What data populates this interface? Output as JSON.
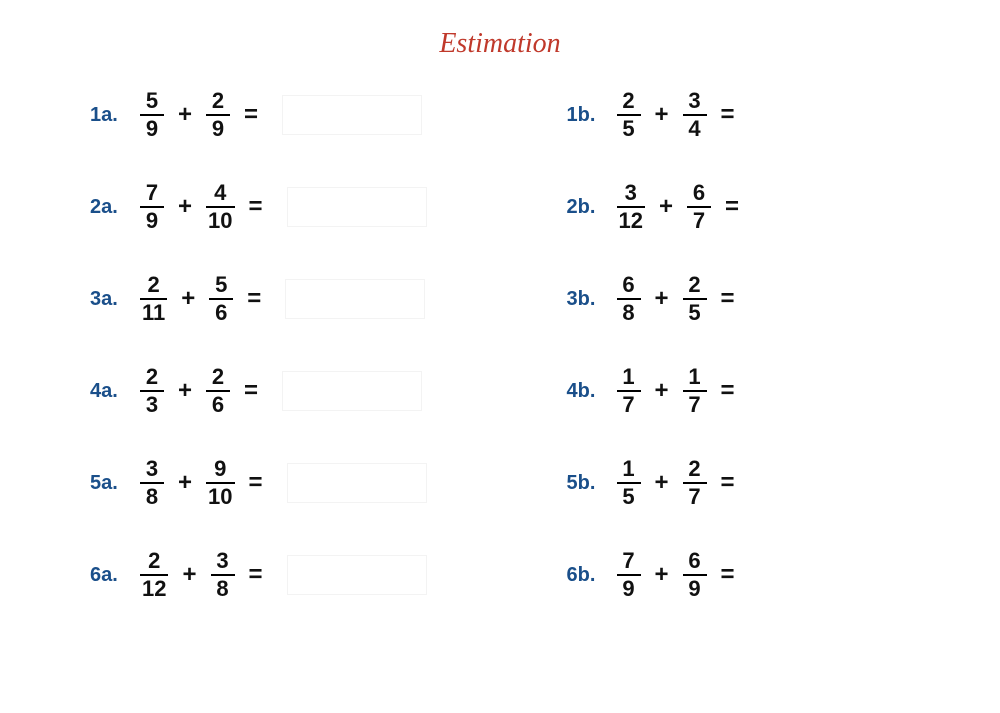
{
  "title": "Estimation",
  "title_color": "#c0392b",
  "label_color": "#1a4f8a",
  "text_color": "#111111",
  "background": "#ffffff",
  "problems": {
    "left": [
      {
        "label": "1a.",
        "n1": "5",
        "d1": "9",
        "n2": "2",
        "d2": "9",
        "op": "+",
        "eq": "="
      },
      {
        "label": "2a.",
        "n1": "7",
        "d1": "9",
        "n2": "4",
        "d2": "10",
        "op": "+",
        "eq": "="
      },
      {
        "label": "3a.",
        "n1": "2",
        "d1": "11",
        "n2": "5",
        "d2": "6",
        "op": "+",
        "eq": "="
      },
      {
        "label": "4a.",
        "n1": "2",
        "d1": "3",
        "n2": "2",
        "d2": "6",
        "op": "+",
        "eq": "="
      },
      {
        "label": "5a.",
        "n1": "3",
        "d1": "8",
        "n2": "9",
        "d2": "10",
        "op": "+",
        "eq": "="
      },
      {
        "label": "6a.",
        "n1": "2",
        "d1": "12",
        "n2": "3",
        "d2": "8",
        "op": "+",
        "eq": "="
      }
    ],
    "right": [
      {
        "label": "1b.",
        "n1": "2",
        "d1": "5",
        "n2": "3",
        "d2": "4",
        "op": "+",
        "eq": "="
      },
      {
        "label": "2b.",
        "n1": "3",
        "d1": "12",
        "n2": "6",
        "d2": "7",
        "op": "+",
        "eq": "="
      },
      {
        "label": "3b.",
        "n1": "6",
        "d1": "8",
        "n2": "2",
        "d2": "5",
        "op": "+",
        "eq": "="
      },
      {
        "label": "4b.",
        "n1": "1",
        "d1": "7",
        "n2": "1",
        "d2": "7",
        "op": "+",
        "eq": "="
      },
      {
        "label": "5b.",
        "n1": "1",
        "d1": "5",
        "n2": "2",
        "d2": "7",
        "op": "+",
        "eq": "="
      },
      {
        "label": "6b.",
        "n1": "7",
        "d1": "9",
        "n2": "6",
        "d2": "9",
        "op": "+",
        "eq": "="
      }
    ]
  }
}
